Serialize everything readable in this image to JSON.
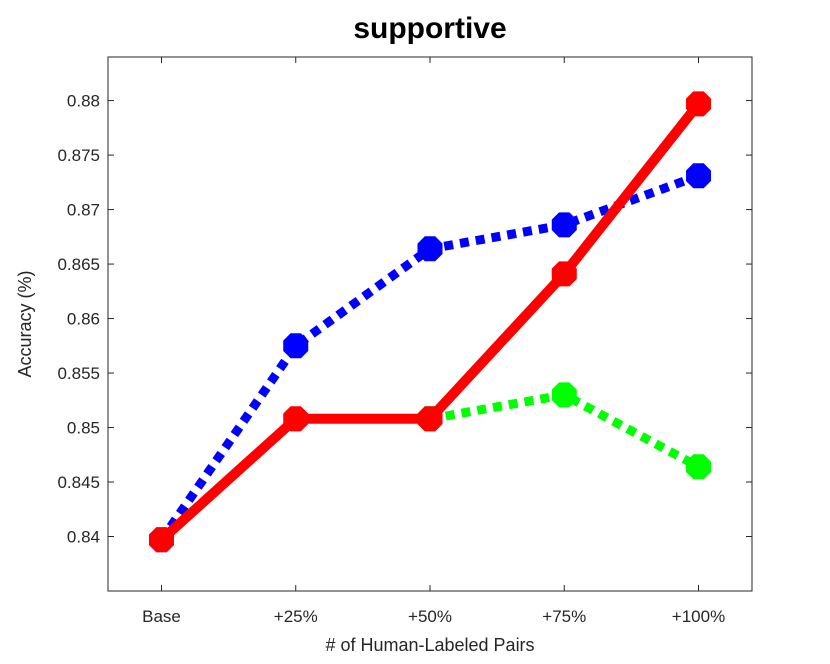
{
  "chart_data": {
    "type": "line",
    "title": "supportive",
    "xlabel": "# of Human-Labeled Pairs",
    "ylabel": "Accuracy (%)",
    "categories": [
      "Base",
      "+25%",
      "+50%",
      "+75%",
      "+100%"
    ],
    "ylim": [
      0.835,
      0.884
    ],
    "yticks": [
      0.84,
      0.845,
      0.85,
      0.855,
      0.86,
      0.865,
      0.87,
      0.875,
      0.88
    ],
    "ytick_labels": [
      "0.84",
      "0.845",
      "0.85",
      "0.855",
      "0.86",
      "0.865",
      "0.87",
      "0.875",
      "0.88"
    ],
    "grid": false,
    "series": [
      {
        "color": "#0000ff",
        "style": "dotted",
        "points": [
          [
            0,
            0.8397
          ],
          [
            1,
            0.8575
          ],
          [
            2,
            0.8664
          ],
          [
            3,
            0.8686
          ],
          [
            4,
            0.8731
          ]
        ]
      },
      {
        "color": "#00ff00",
        "style": "dotted",
        "points": [
          [
            2,
            0.8508
          ],
          [
            3,
            0.853
          ],
          [
            4,
            0.8464
          ]
        ]
      },
      {
        "color": "#ff0000",
        "style": "solid",
        "points": [
          [
            0,
            0.8397
          ],
          [
            1,
            0.8508
          ],
          [
            2,
            0.8508
          ],
          [
            3,
            0.8641
          ],
          [
            4,
            0.8797
          ]
        ]
      }
    ]
  }
}
